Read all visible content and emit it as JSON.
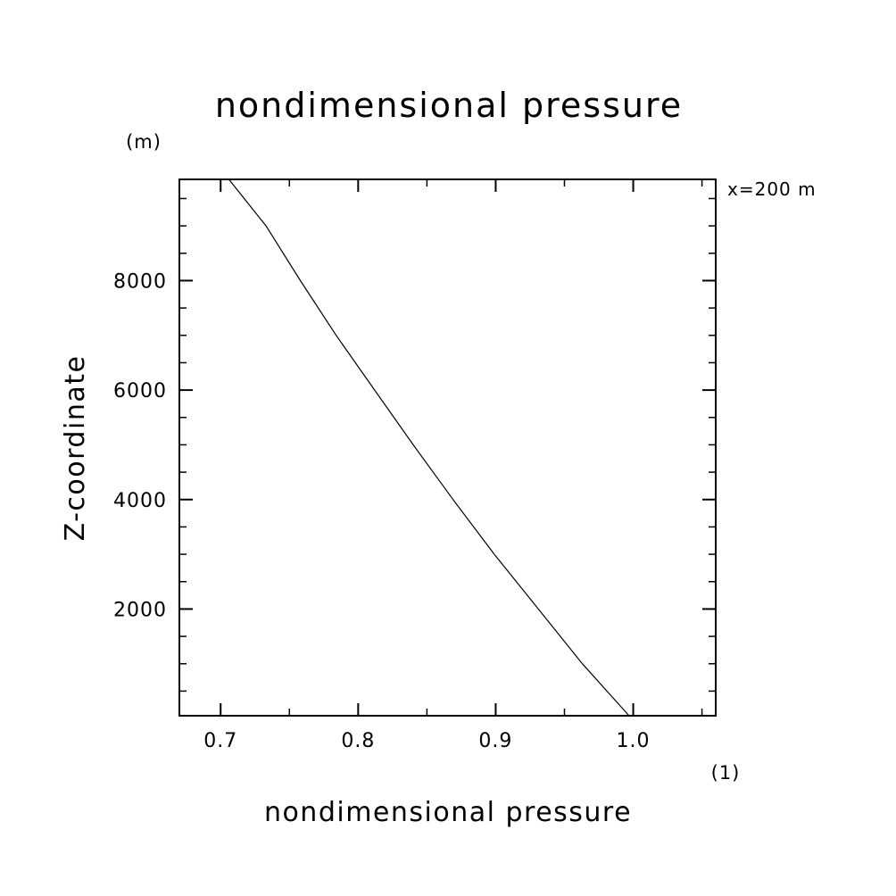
{
  "chart_data": {
    "type": "line",
    "title": "nondimensional pressure",
    "xlabel": "nondimensional pressure",
    "ylabel": "Z-coordinate",
    "xunit": "(1)",
    "yunit": "(m)",
    "annotation": "x=200 m",
    "xlim": [
      0.67,
      1.06
    ],
    "ylim": [
      50,
      9850
    ],
    "xticks": [
      0.7,
      0.8,
      0.9,
      1.0
    ],
    "xtick_labels": [
      "0.7",
      "0.8",
      "0.9",
      "1.0"
    ],
    "xminor_step": 0.05,
    "yticks": [
      2000,
      4000,
      6000,
      8000
    ],
    "ytick_labels": [
      "2000",
      "4000",
      "6000",
      "8000"
    ],
    "yminor_step": 500,
    "grid": false,
    "series": [
      {
        "x": [
          0.997,
          0.963,
          0.931,
          0.899,
          0.869,
          0.84,
          0.812,
          0.784,
          0.758,
          0.733,
          0.706
        ],
        "y": [
          50,
          1000,
          2000,
          3000,
          4000,
          5000,
          6000,
          7000,
          8000,
          9000,
          9850
        ]
      }
    ]
  }
}
